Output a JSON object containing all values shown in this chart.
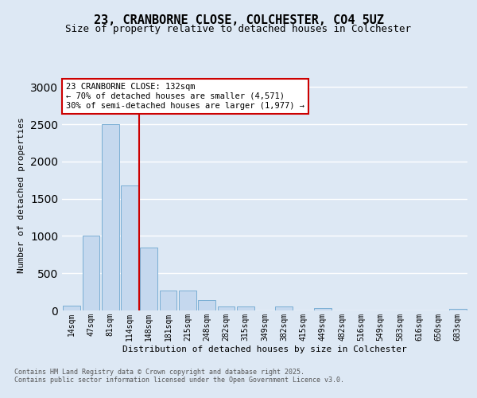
{
  "title_line1": "23, CRANBORNE CLOSE, COLCHESTER, CO4 5UZ",
  "title_line2": "Size of property relative to detached houses in Colchester",
  "xlabel": "Distribution of detached houses by size in Colchester",
  "ylabel": "Number of detached properties",
  "footer_line1": "Contains HM Land Registry data © Crown copyright and database right 2025.",
  "footer_line2": "Contains public sector information licensed under the Open Government Licence v3.0.",
  "categories": [
    "14sqm",
    "47sqm",
    "81sqm",
    "114sqm",
    "148sqm",
    "181sqm",
    "215sqm",
    "248sqm",
    "282sqm",
    "315sqm",
    "349sqm",
    "382sqm",
    "415sqm",
    "449sqm",
    "482sqm",
    "516sqm",
    "549sqm",
    "583sqm",
    "616sqm",
    "650sqm",
    "683sqm"
  ],
  "values": [
    60,
    1000,
    2500,
    1680,
    840,
    270,
    270,
    140,
    50,
    50,
    5,
    55,
    5,
    35,
    5,
    5,
    5,
    5,
    5,
    5,
    20
  ],
  "bar_color": "#c5d8ee",
  "bar_edge_color": "#7aaed4",
  "vline_x": 3.5,
  "annotation_text_line1": "23 CRANBORNE CLOSE: 132sqm",
  "annotation_text_line2": "← 70% of detached houses are smaller (4,571)",
  "annotation_text_line3": "30% of semi-detached houses are larger (1,977) →",
  "annotation_box_color": "#ffffff",
  "annotation_border_color": "#cc0000",
  "vline_color": "#cc0000",
  "ylim": [
    0,
    3100
  ],
  "yticks": [
    0,
    500,
    1000,
    1500,
    2000,
    2500,
    3000
  ],
  "bg_color": "#dde8f4",
  "axes_bg_color": "#dde8f4",
  "grid_color": "#ffffff",
  "title_fontsize": 11,
  "subtitle_fontsize": 9,
  "ylabel_fontsize": 8,
  "xlabel_fontsize": 8,
  "tick_fontsize": 7,
  "ann_fontsize": 7.5
}
